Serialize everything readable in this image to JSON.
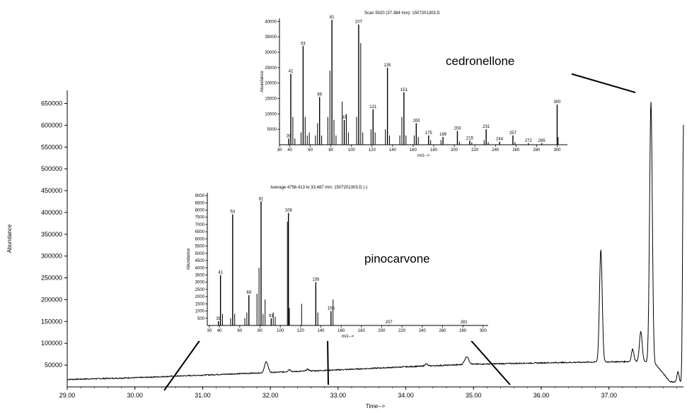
{
  "chart_data": [
    {
      "id": "main",
      "type": "line",
      "title": "",
      "xlabel": "Time-->",
      "ylabel": "Abundance",
      "xlim": [
        29.0,
        38.1
      ],
      "ylim": [
        0,
        680000
      ],
      "x_ticks": [
        29.0,
        30.0,
        31.0,
        32.0,
        33.0,
        34.0,
        35.0,
        36.0,
        37.0
      ],
      "x_tick_labels": [
        "29.00",
        "30.00",
        "31.00",
        "32.00",
        "33.00",
        "34.00",
        "35.00",
        "36.00",
        "37.00"
      ],
      "y_ticks": [
        50000,
        100000,
        150000,
        200000,
        250000,
        300000,
        350000,
        400000,
        450000,
        500000,
        550000,
        600000,
        650000
      ],
      "y_tick_labels": [
        "50000",
        "100000",
        "150000",
        "200000",
        "250000",
        "300000",
        "350000",
        "400000",
        "450000",
        "500000",
        "550000",
        "600000",
        "650000"
      ],
      "baseline": [
        [
          29.0,
          17000
        ],
        [
          30.0,
          21000
        ],
        [
          31.0,
          27000
        ],
        [
          32.0,
          33000
        ],
        [
          33.0,
          39000
        ],
        [
          34.0,
          46000
        ],
        [
          35.0,
          52000
        ],
        [
          36.0,
          55000
        ],
        [
          36.8,
          57000
        ],
        [
          37.3,
          58000
        ],
        [
          37.5,
          59000
        ],
        [
          37.7,
          50000
        ],
        [
          37.9,
          12000
        ],
        [
          38.1,
          10000
        ]
      ],
      "peaks": [
        {
          "x": 31.94,
          "height": 25000,
          "width": 0.025
        },
        {
          "x": 32.28,
          "height": 5000,
          "width": 0.02
        },
        {
          "x": 32.55,
          "height": 4000,
          "width": 0.02
        },
        {
          "x": 34.3,
          "height": 5000,
          "width": 0.02
        },
        {
          "x": 34.9,
          "height": 18000,
          "width": 0.03
        },
        {
          "x": 36.88,
          "height": 258000,
          "width": 0.02
        },
        {
          "x": 37.35,
          "height": 28000,
          "width": 0.018
        },
        {
          "x": 37.47,
          "height": 68000,
          "width": 0.02
        },
        {
          "x": 37.62,
          "height": 600000,
          "width": 0.02
        },
        {
          "x": 38.02,
          "height": 25000,
          "width": 0.015
        },
        {
          "x": 38.1,
          "height": 590000,
          "width": 0.012
        }
      ],
      "annotations": [
        {
          "label": "cedronellone",
          "peak_x": 37.62
        },
        {
          "label": "pinocarvone",
          "peak_x": 31.05
        }
      ]
    },
    {
      "id": "inset-cedronellone",
      "type": "bar",
      "title": "Scan 5020 (37.384 min): 1507201303.D",
      "xlabel": "m/z-->",
      "ylabel": "Abundance",
      "xlim": [
        30,
        310
      ],
      "ylim": [
        0,
        41000
      ],
      "x_ticks": [
        30,
        40,
        60,
        80,
        100,
        120,
        140,
        160,
        180,
        200,
        220,
        240,
        260,
        280,
        300
      ],
      "y_ticks": [
        5000,
        10000,
        15000,
        20000,
        25000,
        30000,
        35000,
        40000
      ],
      "y_tick_labels": [
        "5000",
        "10000",
        "15000",
        "20000",
        "25000",
        "30000",
        "35000",
        "40000"
      ],
      "labeled_peaks": [
        {
          "mz": 39,
          "abundance": 2000,
          "label": "39"
        },
        {
          "mz": 41,
          "abundance": 23000,
          "label": "41"
        },
        {
          "mz": 53,
          "abundance": 32000,
          "label": "53"
        },
        {
          "mz": 69,
          "abundance": 15500,
          "label": "69"
        },
        {
          "mz": 81,
          "abundance": 40500,
          "label": "81"
        },
        {
          "mz": 93,
          "abundance": 8000,
          "label": "93"
        },
        {
          "mz": 107,
          "abundance": 39000,
          "label": "107"
        },
        {
          "mz": 121,
          "abundance": 11500,
          "label": "121"
        },
        {
          "mz": 135,
          "abundance": 25000,
          "label": "135"
        },
        {
          "mz": 151,
          "abundance": 17000,
          "label": "151"
        },
        {
          "mz": 163,
          "abundance": 7000,
          "label": "163"
        },
        {
          "mz": 175,
          "abundance": 3000,
          "label": "175"
        },
        {
          "mz": 189,
          "abundance": 2500,
          "label": "189"
        },
        {
          "mz": 203,
          "abundance": 4500,
          "label": "203"
        },
        {
          "mz": 215,
          "abundance": 1300,
          "label": "215"
        },
        {
          "mz": 231,
          "abundance": 5000,
          "label": "231"
        },
        {
          "mz": 244,
          "abundance": 1000,
          "label": "244"
        },
        {
          "mz": 257,
          "abundance": 3000,
          "label": "257"
        },
        {
          "mz": 272,
          "abundance": 500,
          "label": "272"
        },
        {
          "mz": 285,
          "abundance": 500,
          "label": "285"
        },
        {
          "mz": 300,
          "abundance": 13000,
          "label": "300"
        }
      ],
      "minor_peaks": [
        [
          43,
          9000
        ],
        [
          45,
          2000
        ],
        [
          51,
          4000
        ],
        [
          55,
          9000
        ],
        [
          57,
          3000
        ],
        [
          59,
          4000
        ],
        [
          65,
          3000
        ],
        [
          67,
          7000
        ],
        [
          71,
          3000
        ],
        [
          77,
          9000
        ],
        [
          79,
          24000
        ],
        [
          83,
          8000
        ],
        [
          85,
          3000
        ],
        [
          91,
          14000
        ],
        [
          95,
          10000
        ],
        [
          97,
          4000
        ],
        [
          105,
          9000
        ],
        [
          109,
          33000
        ],
        [
          111,
          4000
        ],
        [
          119,
          5000
        ],
        [
          123,
          4000
        ],
        [
          133,
          5000
        ],
        [
          137,
          3000
        ],
        [
          147,
          3000
        ],
        [
          149,
          9000
        ],
        [
          153,
          3000
        ],
        [
          161,
          3000
        ],
        [
          165,
          2500
        ],
        [
          177,
          1500
        ],
        [
          187,
          1500
        ],
        [
          205,
          1000
        ],
        [
          217,
          800
        ],
        [
          229,
          1500
        ],
        [
          233,
          800
        ],
        [
          259,
          800
        ],
        [
          301,
          2500
        ]
      ]
    },
    {
      "id": "inset-pinocarvone",
      "type": "bar",
      "title": "Average 4756.413 to 33.487 min: 1507201303.D (-)",
      "xlabel": "m/z-->",
      "ylabel": "Abundance",
      "xlim": [
        28,
        305
      ],
      "ylim": [
        0,
        9200
      ],
      "x_ticks": [
        30,
        40,
        60,
        80,
        100,
        120,
        140,
        160,
        180,
        200,
        220,
        240,
        260,
        280,
        300
      ],
      "y_ticks": [
        500,
        1000,
        1500,
        2000,
        2500,
        3000,
        3500,
        4000,
        4500,
        5000,
        5500,
        6000,
        6500,
        7000,
        7500,
        8000,
        8500,
        9000
      ],
      "y_tick_labels": [
        "500",
        "1000",
        "1500",
        "2000",
        "2500",
        "3000",
        "3500",
        "4000",
        "4500",
        "5000",
        "5500",
        "6000",
        "6500",
        "7000",
        "7500",
        "8000",
        "8500",
        "9000"
      ],
      "labeled_peaks": [
        {
          "mz": 39,
          "abundance": 300,
          "label": "39"
        },
        {
          "mz": 41,
          "abundance": 3500,
          "label": "41"
        },
        {
          "mz": 53,
          "abundance": 7700,
          "label": "53"
        },
        {
          "mz": 69,
          "abundance": 2100,
          "label": "69"
        },
        {
          "mz": 81,
          "abundance": 8600,
          "label": "81"
        },
        {
          "mz": 91,
          "abundance": 500,
          "label": "91"
        },
        {
          "mz": 108,
          "abundance": 7800,
          "label": "108"
        },
        {
          "mz": 135,
          "abundance": 3000,
          "label": "135"
        },
        {
          "mz": 150,
          "abundance": 1000,
          "label": "150"
        },
        {
          "mz": 207,
          "abundance": 50,
          "label": "207"
        },
        {
          "mz": 281,
          "abundance": 50,
          "label": "281"
        }
      ],
      "minor_peaks": [
        [
          43,
          800
        ],
        [
          51,
          500
        ],
        [
          55,
          800
        ],
        [
          65,
          500
        ],
        [
          67,
          900
        ],
        [
          77,
          2200
        ],
        [
          79,
          4000
        ],
        [
          83,
          800
        ],
        [
          85,
          1800
        ],
        [
          93,
          900
        ],
        [
          95,
          600
        ],
        [
          107,
          7200
        ],
        [
          109,
          1200
        ],
        [
          121,
          1500
        ],
        [
          137,
          900
        ],
        [
          152,
          1800
        ]
      ]
    }
  ]
}
